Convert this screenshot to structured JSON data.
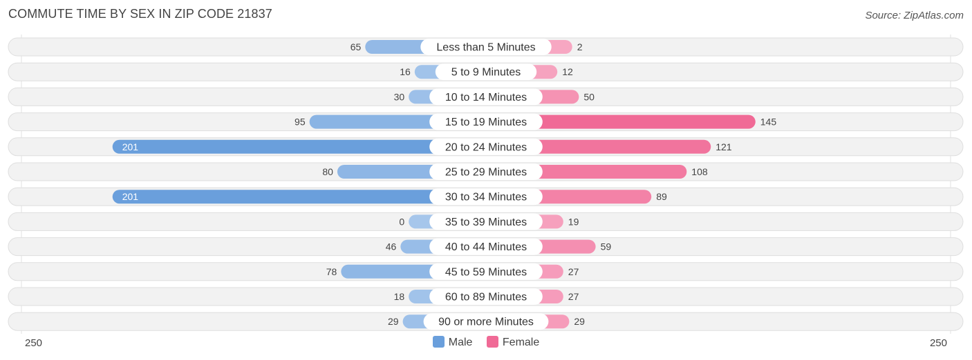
{
  "title": "COMMUTE TIME BY SEX IN ZIP CODE 21837",
  "source": "Source: ZipAtlas.com",
  "colors": {
    "male": "#6a9fdc",
    "male_light": "#a6c6eb",
    "female": "#f06a96",
    "female_light": "#f7a8c3",
    "row_bg": "#efefef"
  },
  "legend": {
    "male": "Male",
    "female": "Female"
  },
  "axis": {
    "left_tick": "250",
    "right_tick": "250"
  },
  "chart_data": {
    "type": "bar",
    "orientation": "horizontal-diverging",
    "categories": [
      "Less than 5 Minutes",
      "5 to 9 Minutes",
      "10 to 14 Minutes",
      "15 to 19 Minutes",
      "20 to 24 Minutes",
      "25 to 29 Minutes",
      "30 to 34 Minutes",
      "35 to 39 Minutes",
      "40 to 44 Minutes",
      "45 to 59 Minutes",
      "60 to 89 Minutes",
      "90 or more Minutes"
    ],
    "series": [
      {
        "name": "Male",
        "values": [
          65,
          16,
          30,
          95,
          201,
          80,
          201,
          0,
          46,
          78,
          18,
          29
        ]
      },
      {
        "name": "Female",
        "values": [
          2,
          12,
          50,
          145,
          121,
          108,
          89,
          19,
          59,
          27,
          27,
          29
        ]
      }
    ],
    "xlim": [
      -250,
      250
    ],
    "grid": false,
    "legend_position": "bottom-center"
  }
}
